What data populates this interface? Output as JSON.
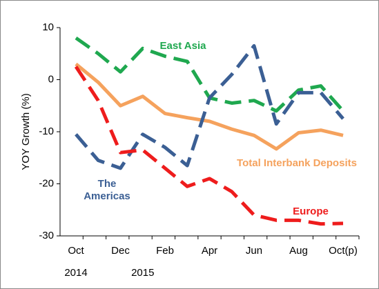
{
  "chart_data": {
    "type": "line",
    "y_label": "YOY Growth (%)",
    "categories": [
      "Oct",
      null,
      "Dec",
      null,
      "Feb",
      null,
      "Apr",
      null,
      "Jun",
      null,
      "Aug",
      null,
      "Oct(p)"
    ],
    "year_labels": [
      "2014",
      "2015"
    ],
    "ylim": [
      -30,
      10
    ],
    "yticks": [
      -30,
      -20,
      -10,
      0,
      10
    ],
    "series": [
      {
        "name": "East Asia",
        "color": "#1fa84f",
        "dashed": true,
        "values": [
          8,
          5,
          1.5,
          6,
          4.5,
          3.5,
          -3.5,
          -4.5,
          -4,
          -6,
          -2,
          -1.2,
          -6
        ]
      },
      {
        "name": "Total Interbank Deposits",
        "color": "#f5a25d",
        "dashed": false,
        "values": [
          3,
          -0.5,
          -5,
          -3.2,
          -6.5,
          -7.3,
          -8,
          -9.5,
          -10.7,
          -13.3,
          -10.2,
          -9.7,
          -10.7
        ]
      },
      {
        "name": "The Americas",
        "color": "#3b5f94",
        "dashed": true,
        "values": [
          -10.5,
          -15.5,
          -17,
          -10.5,
          -13,
          -16.5,
          -3.5,
          1,
          6.5,
          -8.5,
          -2.5,
          -2.5,
          -7.5
        ]
      },
      {
        "name": "Europe",
        "color": "#ee1c1c",
        "dashed": true,
        "values": [
          2.5,
          -4,
          -14,
          -13.5,
          -17,
          -20.5,
          -19,
          -21.5,
          -26,
          -27,
          -27,
          -27.7,
          -27.6
        ]
      }
    ]
  }
}
